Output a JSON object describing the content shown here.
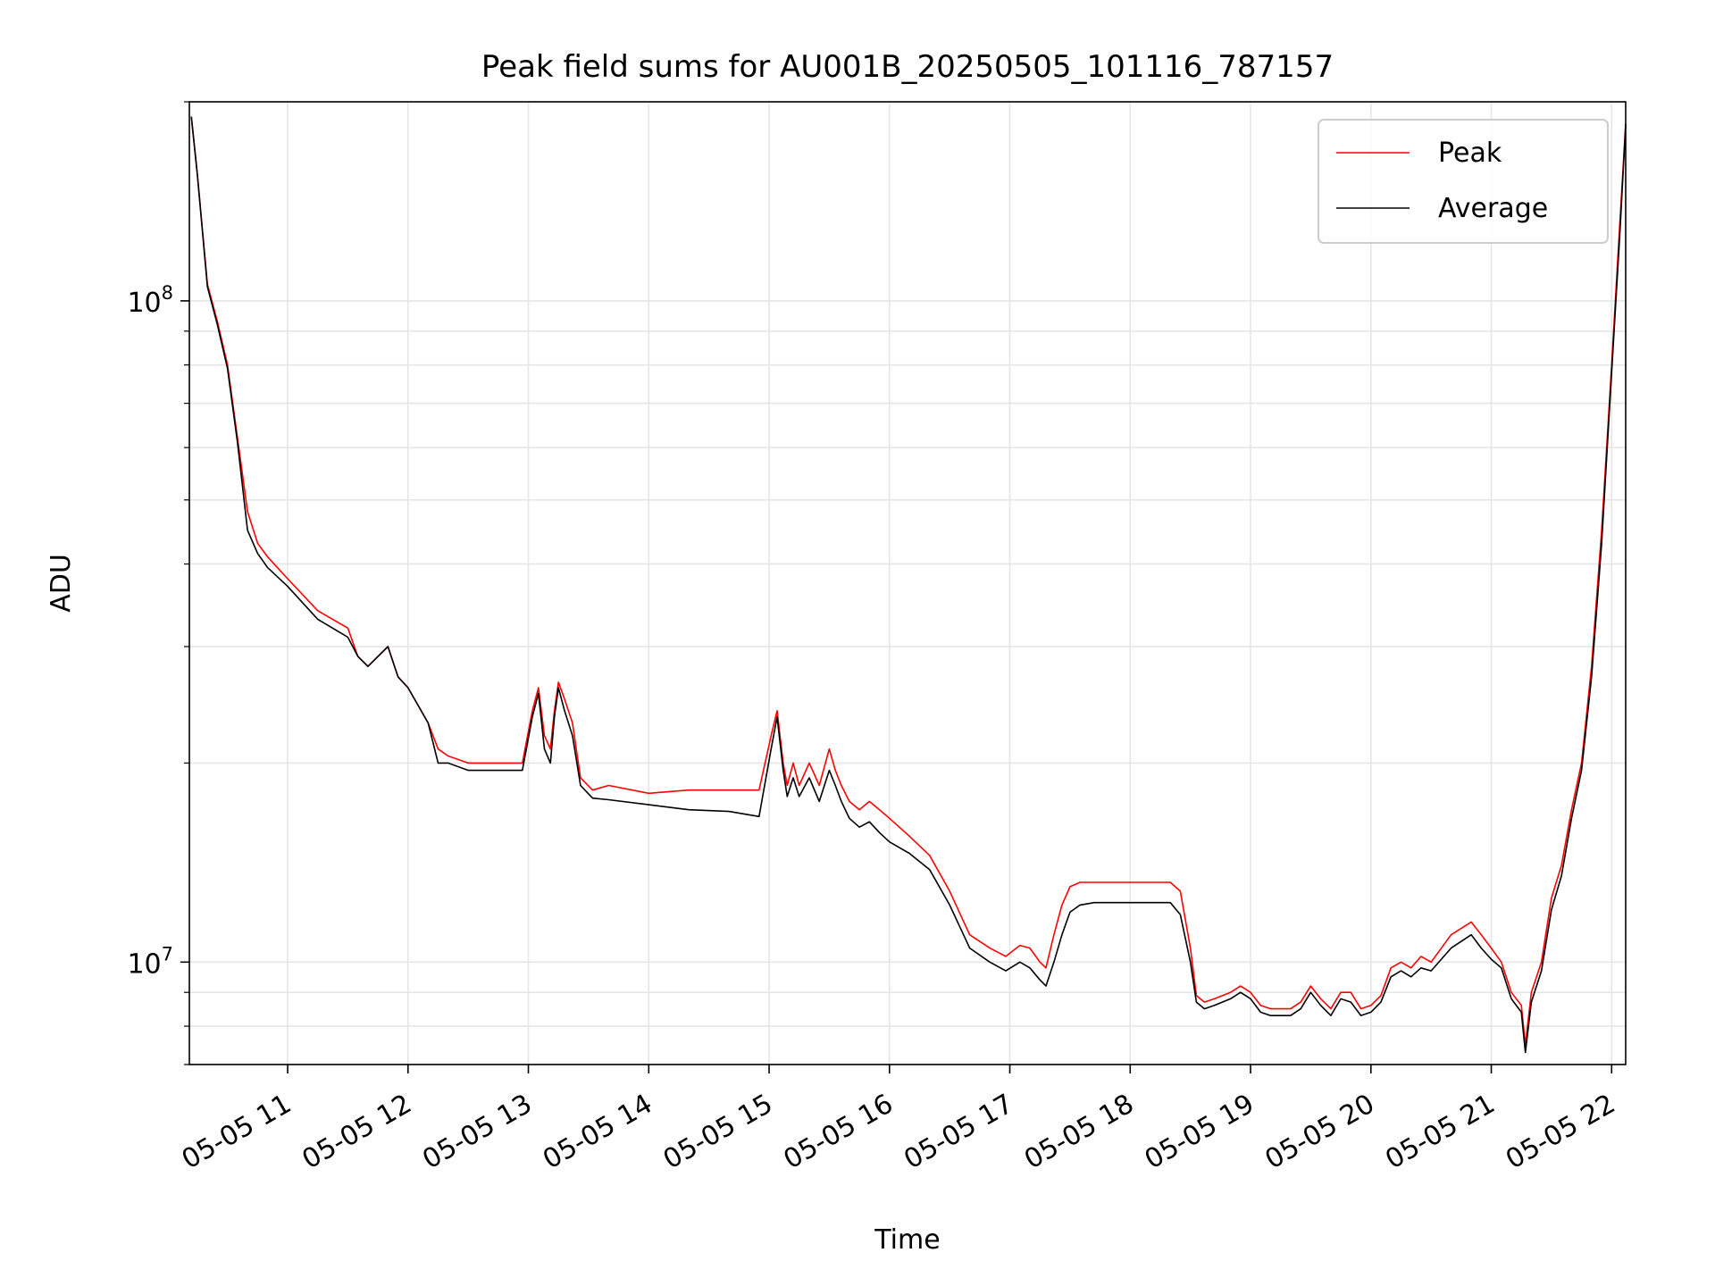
{
  "chart_data": {
    "type": "line",
    "title": "Peak field sums for AU001B_20250505_101116_787157",
    "xlabel": "Time",
    "ylabel": "ADU",
    "yscale": "log",
    "grid": true,
    "legend_placement": "top-right",
    "xlim": [
      "2025-05-05 10:11",
      "2025-05-05 22:07"
    ],
    "ylim": [
      7000000,
      200000000
    ],
    "x_tick_labels": [
      "05-05 11",
      "05-05 12",
      "05-05 13",
      "05-05 14",
      "05-05 15",
      "05-05 16",
      "05-05 17",
      "05-05 18",
      "05-05 19",
      "05-05 20",
      "05-05 21",
      "05-05 22"
    ],
    "x_tick_rotation": 30,
    "y_tick_labels": [
      {
        "value": 10000000,
        "label": "10^7",
        "base": "10",
        "exp": "7"
      },
      {
        "value": 100000000,
        "label": "10^8",
        "base": "10",
        "exp": "8"
      }
    ],
    "x": [
      "2025-05-05 10:12",
      "2025-05-05 10:15",
      "2025-05-05 10:20",
      "2025-05-05 10:25",
      "2025-05-05 10:30",
      "2025-05-05 10:35",
      "2025-05-05 10:40",
      "2025-05-05 10:45",
      "2025-05-05 10:50",
      "2025-05-05 11:00",
      "2025-05-05 11:15",
      "2025-05-05 11:30",
      "2025-05-05 11:35",
      "2025-05-05 11:40",
      "2025-05-05 11:50",
      "2025-05-05 11:55",
      "2025-05-05 12:00",
      "2025-05-05 12:10",
      "2025-05-05 12:15",
      "2025-05-05 12:20",
      "2025-05-05 12:30",
      "2025-05-05 12:40",
      "2025-05-05 12:50",
      "2025-05-05 12:57",
      "2025-05-05 13:02",
      "2025-05-05 13:05",
      "2025-05-05 13:08",
      "2025-05-05 13:11",
      "2025-05-05 13:13",
      "2025-05-05 13:15",
      "2025-05-05 13:18",
      "2025-05-05 13:22",
      "2025-05-05 13:26",
      "2025-05-05 13:32",
      "2025-05-05 13:40",
      "2025-05-05 14:00",
      "2025-05-05 14:20",
      "2025-05-05 14:40",
      "2025-05-05 14:55",
      "2025-05-05 15:01",
      "2025-05-05 15:04",
      "2025-05-05 15:07",
      "2025-05-05 15:09",
      "2025-05-05 15:12",
      "2025-05-05 15:15",
      "2025-05-05 15:20",
      "2025-05-05 15:25",
      "2025-05-05 15:30",
      "2025-05-05 15:33",
      "2025-05-05 15:36",
      "2025-05-05 15:40",
      "2025-05-05 15:45",
      "2025-05-05 15:50",
      "2025-05-05 15:55",
      "2025-05-05 16:00",
      "2025-05-05 16:10",
      "2025-05-05 16:20",
      "2025-05-05 16:30",
      "2025-05-05 16:40",
      "2025-05-05 16:50",
      "2025-05-05 16:58",
      "2025-05-05 17:05",
      "2025-05-05 17:10",
      "2025-05-05 17:15",
      "2025-05-05 17:18",
      "2025-05-05 17:22",
      "2025-05-05 17:26",
      "2025-05-05 17:30",
      "2025-05-05 17:35",
      "2025-05-05 17:42",
      "2025-05-05 17:50",
      "2025-05-05 18:00",
      "2025-05-05 18:10",
      "2025-05-05 18:20",
      "2025-05-05 18:25",
      "2025-05-05 18:30",
      "2025-05-05 18:33",
      "2025-05-05 18:37",
      "2025-05-05 18:42",
      "2025-05-05 18:50",
      "2025-05-05 18:55",
      "2025-05-05 19:00",
      "2025-05-05 19:05",
      "2025-05-05 19:10",
      "2025-05-05 19:20",
      "2025-05-05 19:25",
      "2025-05-05 19:30",
      "2025-05-05 19:35",
      "2025-05-05 19:40",
      "2025-05-05 19:45",
      "2025-05-05 19:50",
      "2025-05-05 19:55",
      "2025-05-05 20:00",
      "2025-05-05 20:05",
      "2025-05-05 20:10",
      "2025-05-05 20:15",
      "2025-05-05 20:20",
      "2025-05-05 20:25",
      "2025-05-05 20:30",
      "2025-05-05 20:40",
      "2025-05-05 20:50",
      "2025-05-05 20:55",
      "2025-05-05 21:00",
      "2025-05-05 21:05",
      "2025-05-05 21:10",
      "2025-05-05 21:15",
      "2025-05-05 21:17",
      "2025-05-05 21:20",
      "2025-05-05 21:25",
      "2025-05-05 21:30",
      "2025-05-05 21:35",
      "2025-05-05 21:40",
      "2025-05-05 21:45",
      "2025-05-05 21:50",
      "2025-05-05 21:55",
      "2025-05-05 22:00",
      "2025-05-05 22:04",
      "2025-05-05 22:07"
    ],
    "series": [
      {
        "name": "Peak",
        "color": "#ff0000",
        "values": [
          190000000,
          155000000,
          106000000,
          93000000,
          80000000,
          62000000,
          48000000,
          43000000,
          41000000,
          38000000,
          34000000,
          32000000,
          29000000,
          28000000,
          30000000,
          27000000,
          26000000,
          23000000,
          21000000,
          20500000,
          20000000,
          20000000,
          20000000,
          20000000,
          24000000,
          26000000,
          22000000,
          21000000,
          24000000,
          26500000,
          25000000,
          23000000,
          19000000,
          18200000,
          18500000,
          18000000,
          18200000,
          18200000,
          18200000,
          22000000,
          24000000,
          20000000,
          18500000,
          20000000,
          18500000,
          20000000,
          18500000,
          21000000,
          19500000,
          18500000,
          17500000,
          17000000,
          17500000,
          17000000,
          16500000,
          15500000,
          14500000,
          12800000,
          11000000,
          10500000,
          10200000,
          10600000,
          10500000,
          10000000,
          9800000,
          11000000,
          12200000,
          13000000,
          13200000,
          13200000,
          13200000,
          13200000,
          13200000,
          13200000,
          12800000,
          10500000,
          8900000,
          8700000,
          8800000,
          9000000,
          9200000,
          9000000,
          8600000,
          8500000,
          8500000,
          8700000,
          9200000,
          8800000,
          8500000,
          9000000,
          9000000,
          8500000,
          8600000,
          8900000,
          9800000,
          10000000,
          9800000,
          10200000,
          10000000,
          11000000,
          11500000,
          11000000,
          10500000,
          10000000,
          9000000,
          8600000,
          7500000,
          9000000,
          10000000,
          12500000,
          14000000,
          17000000,
          20000000,
          28000000,
          45000000,
          80000000,
          130000000,
          185000000
        ]
      },
      {
        "name": "Average",
        "color": "#000000",
        "values": [
          190000000,
          155000000,
          105000000,
          92000000,
          79000000,
          61000000,
          45000000,
          41500000,
          39500000,
          37000000,
          33000000,
          31000000,
          29000000,
          28000000,
          30000000,
          27000000,
          26000000,
          23000000,
          20000000,
          20000000,
          19500000,
          19500000,
          19500000,
          19500000,
          23500000,
          25500000,
          21000000,
          20000000,
          23500000,
          26000000,
          24000000,
          22000000,
          18500000,
          17700000,
          17600000,
          17300000,
          17000000,
          16900000,
          16600000,
          21000000,
          23500000,
          19500000,
          17800000,
          19000000,
          17800000,
          19000000,
          17500000,
          19500000,
          18500000,
          17500000,
          16500000,
          16000000,
          16300000,
          15700000,
          15200000,
          14600000,
          13800000,
          12200000,
          10500000,
          10000000,
          9700000,
          10000000,
          9800000,
          9400000,
          9200000,
          10000000,
          11000000,
          11900000,
          12200000,
          12300000,
          12300000,
          12300000,
          12300000,
          12300000,
          11800000,
          10000000,
          8700000,
          8500000,
          8600000,
          8800000,
          9000000,
          8800000,
          8400000,
          8300000,
          8300000,
          8500000,
          9000000,
          8600000,
          8300000,
          8800000,
          8700000,
          8300000,
          8400000,
          8700000,
          9500000,
          9700000,
          9500000,
          9800000,
          9700000,
          10500000,
          11000000,
          10500000,
          10100000,
          9800000,
          8800000,
          8400000,
          7300000,
          8700000,
          9700000,
          12000000,
          13500000,
          16500000,
          19500000,
          27000000,
          43000000,
          78000000,
          125000000,
          185000000
        ]
      }
    ]
  }
}
